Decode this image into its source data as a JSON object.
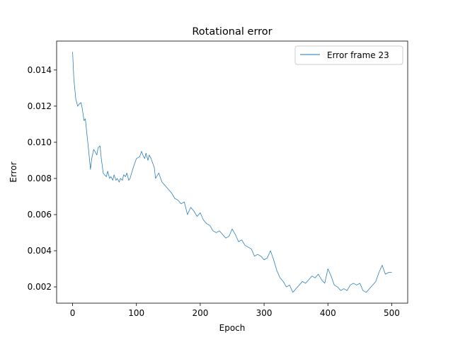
{
  "chart_data": {
    "type": "line",
    "title": "Rotational error",
    "xlabel": "Epoch",
    "ylabel": "Error",
    "xlim": [
      -25,
      525
    ],
    "ylim": [
      0.0011,
      0.0156
    ],
    "x_ticks": [
      0,
      100,
      200,
      300,
      400,
      500
    ],
    "x_tick_labels": [
      "0",
      "100",
      "200",
      "300",
      "400",
      "500"
    ],
    "y_ticks": [
      0.002,
      0.004,
      0.006,
      0.008,
      0.01,
      0.012,
      0.014
    ],
    "y_tick_labels": [
      "0.002",
      "0.004",
      "0.006",
      "0.008",
      "0.010",
      "0.012",
      "0.014"
    ],
    "grid": false,
    "legend_position": "top-right",
    "series": [
      {
        "name": "Error frame 23",
        "color": "#1f77b4",
        "x": [
          0,
          2,
          5,
          8,
          10,
          13,
          15,
          18,
          20,
          22,
          25,
          28,
          30,
          33,
          35,
          38,
          40,
          43,
          45,
          48,
          50,
          53,
          55,
          58,
          60,
          63,
          65,
          68,
          70,
          73,
          75,
          78,
          80,
          83,
          85,
          88,
          90,
          95,
          100,
          105,
          108,
          110,
          113,
          115,
          118,
          120,
          123,
          125,
          128,
          130,
          135,
          140,
          145,
          150,
          155,
          160,
          165,
          170,
          175,
          180,
          185,
          190,
          195,
          200,
          205,
          210,
          215,
          220,
          225,
          230,
          235,
          240,
          245,
          250,
          255,
          260,
          265,
          270,
          275,
          280,
          285,
          290,
          295,
          300,
          305,
          310,
          315,
          320,
          325,
          330,
          335,
          340,
          345,
          350,
          355,
          360,
          365,
          370,
          375,
          380,
          385,
          390,
          395,
          400,
          405,
          410,
          415,
          420,
          425,
          430,
          435,
          440,
          445,
          450,
          455,
          460,
          465,
          470,
          475,
          480,
          485,
          490,
          495,
          500
        ],
        "y": [
          0.015,
          0.0135,
          0.0124,
          0.012,
          0.0121,
          0.0122,
          0.0119,
          0.0112,
          0.0113,
          0.0106,
          0.0096,
          0.0085,
          0.0091,
          0.0096,
          0.0095,
          0.0093,
          0.0097,
          0.0098,
          0.0091,
          0.0083,
          0.0082,
          0.0081,
          0.0084,
          0.008,
          0.0081,
          0.0079,
          0.0082,
          0.0079,
          0.008,
          0.0078,
          0.008,
          0.0079,
          0.0082,
          0.0081,
          0.0083,
          0.0079,
          0.008,
          0.0086,
          0.0091,
          0.0092,
          0.0095,
          0.0093,
          0.0091,
          0.0094,
          0.009,
          0.0093,
          0.0091,
          0.0089,
          0.0086,
          0.008,
          0.0083,
          0.0078,
          0.0076,
          0.0074,
          0.0072,
          0.0069,
          0.0068,
          0.0066,
          0.0067,
          0.006,
          0.0064,
          0.0062,
          0.0059,
          0.0061,
          0.0057,
          0.0055,
          0.0054,
          0.0051,
          0.005,
          0.0051,
          0.0049,
          0.0047,
          0.0048,
          0.0052,
          0.0049,
          0.0045,
          0.0046,
          0.0043,
          0.0042,
          0.0041,
          0.0037,
          0.0038,
          0.0037,
          0.0035,
          0.0036,
          0.004,
          0.0035,
          0.0029,
          0.0025,
          0.0023,
          0.002,
          0.0021,
          0.0017,
          0.0019,
          0.0021,
          0.0023,
          0.0022,
          0.0024,
          0.0026,
          0.0025,
          0.0027,
          0.0024,
          0.0022,
          0.003,
          0.0026,
          0.0021,
          0.002,
          0.0018,
          0.0019,
          0.0018,
          0.0021,
          0.0022,
          0.0021,
          0.0022,
          0.0018,
          0.0017,
          0.0019,
          0.0021,
          0.0023,
          0.0028,
          0.0032,
          0.0027,
          0.0028,
          0.0028
        ]
      }
    ]
  }
}
